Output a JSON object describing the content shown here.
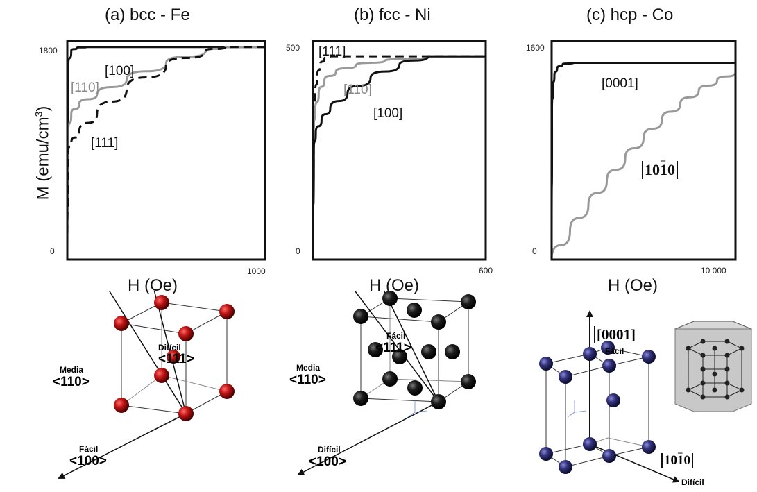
{
  "ylabel": "M (emu/cm",
  "ylabel_sup": "3",
  "ylabel_end": ")",
  "panels": [
    {
      "title": "(a) bcc - Fe",
      "xlabel": "H (Oe)",
      "xmax_label": "1000",
      "ymax_label": "1800",
      "ymin_label": "0"
    },
    {
      "title": "(b) fcc - Ni",
      "xlabel": "H (Oe)",
      "xmax_label": "600",
      "ymax_label": "500",
      "ymin_label": "0"
    },
    {
      "title": "(c) hcp - Co",
      "xlabel": "H (Oe)",
      "xmax_label": "10 000",
      "ymax_label": "1600",
      "ymin_label": "0"
    }
  ],
  "chart_data": [
    {
      "type": "line",
      "title": "(a) bcc - Fe",
      "xlabel": "H (Oe)",
      "ylabel": "M (emu/cm3)",
      "xlim": [
        0,
        1000
      ],
      "ylim": [
        0,
        1800
      ],
      "series": [
        {
          "name": "[100]",
          "color": "#111111",
          "dash": "solid",
          "x": [
            0,
            5,
            20,
            50,
            100,
            200,
            400,
            700,
            1000
          ],
          "y": [
            0,
            1600,
            1720,
            1745,
            1750,
            1750,
            1750,
            1750,
            1750
          ]
        },
        {
          "name": "[110]",
          "color": "#999999",
          "dash": "solid",
          "x": [
            0,
            5,
            20,
            60,
            150,
            300,
            500,
            700,
            800,
            1000
          ],
          "y": [
            0,
            1050,
            1200,
            1280,
            1360,
            1480,
            1620,
            1720,
            1750,
            1750
          ]
        },
        {
          "name": "[111]",
          "color": "#111111",
          "dash": "dashed",
          "x": [
            0,
            5,
            20,
            60,
            150,
            300,
            500,
            700,
            800,
            1000
          ],
          "y": [
            0,
            900,
            960,
            1050,
            1200,
            1400,
            1600,
            1720,
            1750,
            1750
          ]
        }
      ]
    },
    {
      "type": "line",
      "title": "(b) fcc - Ni",
      "xlabel": "H (Oe)",
      "ylabel": "M (emu/cm3)",
      "xlim": [
        0,
        600
      ],
      "ylim": [
        0,
        500
      ],
      "series": [
        {
          "name": "[111]",
          "color": "#111111",
          "dash": "dashed",
          "x": [
            0,
            3,
            8,
            15,
            25,
            40,
            60,
            100,
            200,
            600
          ],
          "y": [
            0,
            300,
            380,
            420,
            445,
            460,
            465,
            465,
            465,
            465
          ]
        },
        {
          "name": "[110]",
          "color": "#999999",
          "dash": "solid",
          "x": [
            0,
            3,
            8,
            20,
            40,
            80,
            150,
            250,
            400,
            600
          ],
          "y": [
            0,
            300,
            340,
            380,
            410,
            430,
            445,
            455,
            462,
            465
          ]
        },
        {
          "name": "[100]",
          "color": "#111111",
          "dash": "solid",
          "x": [
            0,
            3,
            10,
            30,
            60,
            120,
            200,
            300,
            400,
            600
          ],
          "y": [
            0,
            250,
            290,
            320,
            345,
            380,
            415,
            445,
            465,
            465
          ]
        }
      ]
    },
    {
      "type": "line",
      "title": "(c) hcp - Co",
      "xlabel": "H (Oe)",
      "ylabel": "M (emu/cm3)",
      "xlim": [
        0,
        10000
      ],
      "ylim": [
        0,
        1600
      ],
      "series": [
        {
          "name": "[0001]",
          "color": "#111111",
          "dash": "solid",
          "x": [
            0,
            20,
            60,
            150,
            300,
            600,
            1200,
            3000,
            10000
          ],
          "y": [
            0,
            1100,
            1250,
            1350,
            1400,
            1430,
            1440,
            1440,
            1440
          ]
        },
        {
          "name": "[10-10]",
          "color": "#999999",
          "dash": "solid",
          "x": [
            0,
            1000,
            2000,
            3000,
            4000,
            5000,
            6000,
            7000,
            8000,
            9000,
            10000
          ],
          "y": [
            0,
            210,
            400,
            575,
            740,
            890,
            1025,
            1140,
            1235,
            1310,
            1370
          ]
        }
      ]
    }
  ],
  "crystals": {
    "bcc": {
      "labels": [
        {
          "key": "dificil",
          "text": "Difícil",
          "dir": "<111>"
        },
        {
          "key": "media",
          "text": "Media",
          "dir": "<110>"
        },
        {
          "key": "facil",
          "text": "Fácil",
          "dir": "<100>"
        }
      ],
      "atom_color": "#b01010"
    },
    "fcc": {
      "labels": [
        {
          "key": "facil",
          "text": "Fácil",
          "dir": "<111>"
        },
        {
          "key": "media",
          "text": "Media",
          "dir": "<110>"
        },
        {
          "key": "dificil",
          "text": "Difícil",
          "dir": "<100>"
        }
      ],
      "atom_color": "#1a1a1a"
    },
    "hcp": {
      "top_dir": "[0001]",
      "top_text": "Fácil",
      "side_dir": "[1010]",
      "side_text": "Difícil",
      "atom_color": "#2a2a70"
    }
  }
}
